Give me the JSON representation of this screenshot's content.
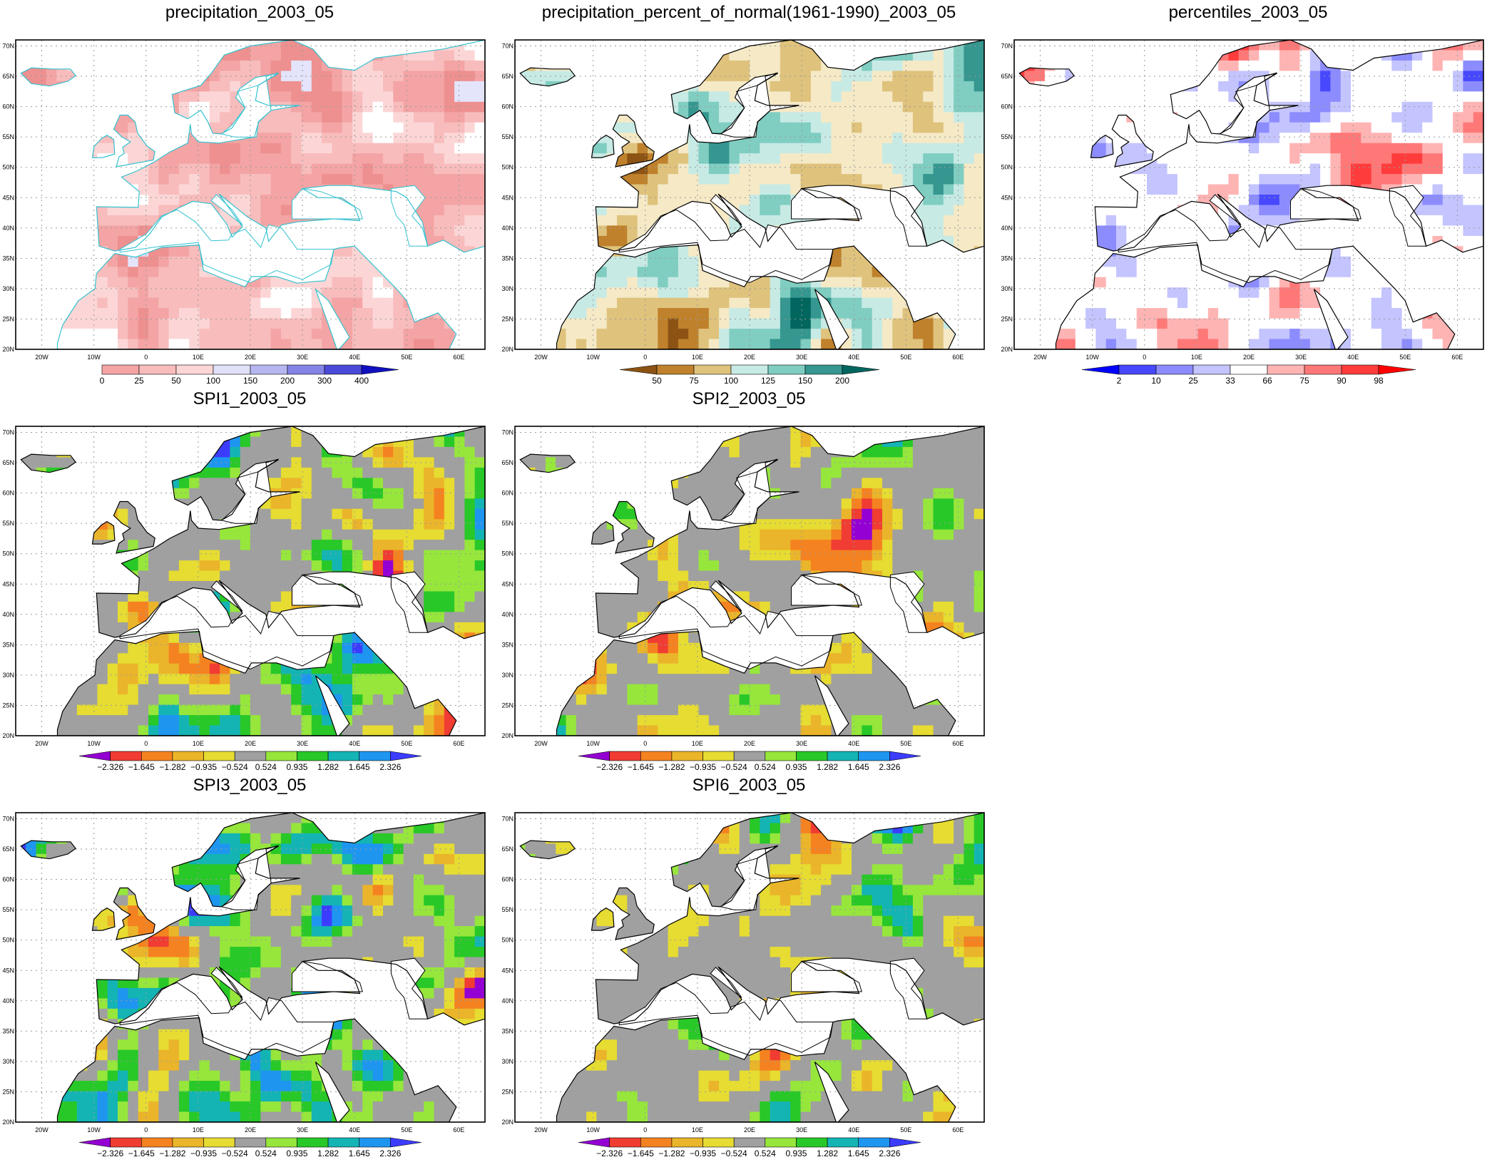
{
  "panels": [
    {
      "id": "precip",
      "title": "precipitation_2003_05",
      "scheme": "precip"
    },
    {
      "id": "pct",
      "title": "precipitation_percent_of_normal(1961-1990)_2003_05",
      "scheme": "pct"
    },
    {
      "id": "perc",
      "title": "percentiles_2003_05",
      "scheme": "perc"
    },
    {
      "id": "spi1",
      "title": "SPI1_2003_05",
      "scheme": "spi"
    },
    {
      "id": "spi2",
      "title": "SPI2_2003_05",
      "scheme": "spi"
    },
    {
      "id": "spi3",
      "title": "SPI3_2003_05",
      "scheme": "spi"
    },
    {
      "id": "spi6",
      "title": "SPI6_2003_05",
      "scheme": "spi"
    }
  ],
  "axes": {
    "lat_labels": [
      "20N",
      "25N",
      "30N",
      "35N",
      "40N",
      "45N",
      "50N",
      "55N",
      "60N",
      "65N",
      "70N"
    ],
    "lon_labels": [
      "20W",
      "10W",
      "0",
      "10E",
      "20E",
      "30E",
      "40E",
      "50E",
      "60E"
    ]
  },
  "legends": {
    "precip": {
      "labels": [
        "0",
        "25",
        "50",
        "100",
        "150",
        "200",
        "300",
        "400"
      ],
      "colors": [
        "#f4a4a4",
        "#f8bcbc",
        "#fcd6d6",
        "#e0e0f8",
        "#b6b6f0",
        "#8484e6",
        "#4a4ad8",
        "#1010c0"
      ]
    },
    "pct": {
      "labels": [
        "50",
        "75",
        "100",
        "125",
        "150",
        "200"
      ],
      "colors": [
        "#8c5314",
        "#bf812c",
        "#dfc27c",
        "#c7eae5",
        "#80cdc1",
        "#35978f",
        "#01665e"
      ]
    },
    "perc": {
      "labels": [
        "2",
        "10",
        "25",
        "33",
        "66",
        "75",
        "90",
        "98"
      ],
      "colors": [
        "#0000ff",
        "#4848ff",
        "#8c8cff",
        "#c4c4ff",
        "#ffffff",
        "#ffb4b4",
        "#ff7878",
        "#ff3c3c",
        "#ff0000"
      ]
    },
    "spi": {
      "labels": [
        "−2.326",
        "−1.645",
        "−1.282",
        "−0.935",
        "−0.524",
        "0.524",
        "0.935",
        "1.282",
        "1.645",
        "2.326"
      ],
      "colors": [
        "#9400d3",
        "#f03c32",
        "#f58220",
        "#eab52a",
        "#e6dc32",
        "#a0a0a0",
        "#96e63c",
        "#28c828",
        "#14b4b4",
        "#1e96f0",
        "#3c3cff"
      ]
    }
  }
}
